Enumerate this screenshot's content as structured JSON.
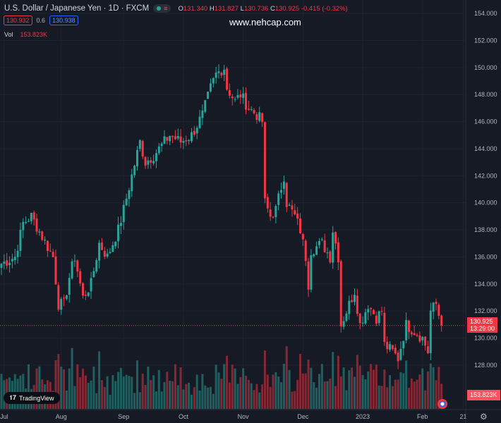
{
  "header": {
    "symbol": "U.S. Dollar / Japanese Yen · 1D · FXCM",
    "o_label": "O",
    "o": "131.340",
    "h_label": "H",
    "h": "131.827",
    "l_label": "L",
    "l": "130.736",
    "c_label": "C",
    "c": "130.925",
    "change": "-0.415 (-0.32%)"
  },
  "bid_ask": {
    "sell": "130.932",
    "spread": "0.6",
    "buy": "130.938"
  },
  "volume": {
    "label": "Vol",
    "value": "153.823K"
  },
  "watermark": "www.nehcap.com",
  "last_price_tag": {
    "price": "130.925",
    "countdown": "13:29:00"
  },
  "volume_tag": "153.823K",
  "logo_text": "TradingView",
  "colors": {
    "up": "#26a69a",
    "down": "#f23645",
    "bg": "#161a25",
    "grid": "#232733"
  },
  "chart_data": {
    "type": "candlestick",
    "title": "U.S. Dollar / Japanese Yen · 1D · FXCM",
    "y_ticks": [
      "154.000",
      "152.000",
      "150.000",
      "148.000",
      "146.000",
      "144.000",
      "142.000",
      "140.000",
      "138.000",
      "136.000",
      "134.000",
      "132.000",
      "130.000",
      "128.000"
    ],
    "ylim": [
      127.2,
      154.5
    ],
    "x_ticks": [
      {
        "label": "Jul",
        "day": 1
      },
      {
        "label": "Aug",
        "day": 22
      },
      {
        "label": "Sep",
        "day": 45
      },
      {
        "label": "Oct",
        "day": 67
      },
      {
        "label": "Nov",
        "day": 89
      },
      {
        "label": "Dec",
        "day": 111
      },
      {
        "label": "2023",
        "day": 133
      },
      {
        "label": "Feb",
        "day": 155
      },
      {
        "label": "21",
        "day": 170
      }
    ],
    "close_keypoints": [
      [
        0,
        135.5
      ],
      [
        5,
        136
      ],
      [
        8,
        138.5
      ],
      [
        11,
        139
      ],
      [
        15,
        137.5
      ],
      [
        19,
        136
      ],
      [
        21,
        132.5
      ],
      [
        23,
        132.5
      ],
      [
        25,
        134.5
      ],
      [
        27,
        136
      ],
      [
        30,
        133
      ],
      [
        33,
        134
      ],
      [
        36,
        137
      ],
      [
        39,
        136
      ],
      [
        43,
        138
      ],
      [
        45,
        139.5
      ],
      [
        48,
        142
      ],
      [
        51,
        144.5
      ],
      [
        53,
        143
      ],
      [
        56,
        143.5
      ],
      [
        58,
        144
      ],
      [
        62,
        145
      ],
      [
        66,
        144.5
      ],
      [
        70,
        145
      ],
      [
        74,
        146.5
      ],
      [
        77,
        148.5
      ],
      [
        79,
        149.5
      ],
      [
        82,
        150
      ],
      [
        83,
        148.5
      ],
      [
        86,
        147.5
      ],
      [
        88,
        148
      ],
      [
        91,
        147
      ],
      [
        94,
        146.5
      ],
      [
        96,
        146
      ],
      [
        97,
        140
      ],
      [
        99,
        139
      ],
      [
        101,
        139.5
      ],
      [
        104,
        142
      ],
      [
        105,
        140
      ],
      [
        108,
        139
      ],
      [
        110,
        138
      ],
      [
        112,
        136
      ],
      [
        113,
        134
      ],
      [
        114,
        136.5
      ],
      [
        118,
        137
      ],
      [
        121,
        136
      ],
      [
        122,
        138
      ],
      [
        124,
        136
      ],
      [
        125,
        131
      ],
      [
        127,
        132
      ],
      [
        130,
        133.5
      ],
      [
        132,
        131
      ],
      [
        135,
        132.5
      ],
      [
        138,
        131.5
      ],
      [
        140,
        132
      ],
      [
        141,
        129.5
      ],
      [
        144,
        129
      ],
      [
        146,
        128.5
      ],
      [
        149,
        131
      ],
      [
        152,
        130.5
      ],
      [
        155,
        130
      ],
      [
        157,
        129
      ],
      [
        158,
        132
      ],
      [
        160,
        132.5
      ],
      [
        162,
        130.925
      ]
    ],
    "last_volume": "153.823K"
  }
}
